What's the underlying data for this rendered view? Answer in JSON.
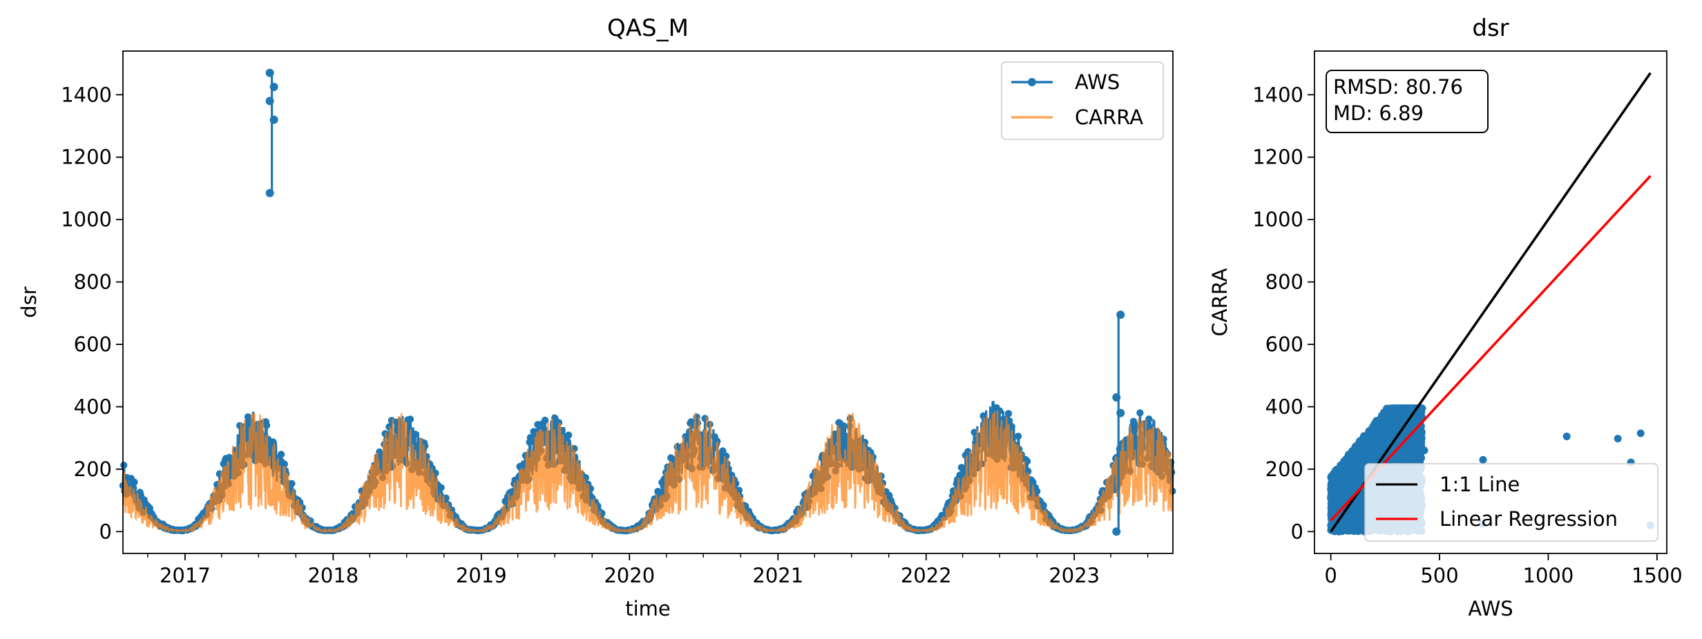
{
  "colors": {
    "aws": "#1f77b4",
    "carra": "#ff7f0e",
    "one_to_one": "#000000",
    "regression": "#ff0000"
  },
  "chart_data": [
    {
      "type": "line",
      "title": "QAS_M",
      "xlabel": "time",
      "ylabel": "dsr",
      "xlim": [
        "2016-08-01",
        "2023-09-01"
      ],
      "ylim": [
        -70,
        1540
      ],
      "xticks": [
        "2017",
        "2018",
        "2019",
        "2020",
        "2021",
        "2022",
        "2023"
      ],
      "yticks": [
        0,
        200,
        400,
        600,
        800,
        1000,
        1200,
        1400
      ],
      "legend": {
        "position": "top-right",
        "entries": [
          {
            "label": "AWS",
            "color": "#1f77b4",
            "marker": "dot"
          },
          {
            "label": "CARRA",
            "color": "#ff7f0e",
            "marker": "none"
          }
        ]
      },
      "series": [
        {
          "name": "AWS",
          "seasonal_peaks": [
            {
              "date": "2016-08-01",
              "value": 260
            },
            {
              "date": "2017-06-20",
              "value": 385
            },
            {
              "date": "2018-06-15",
              "value": 380
            },
            {
              "date": "2019-06-15",
              "value": 380
            },
            {
              "date": "2020-06-15",
              "value": 375
            },
            {
              "date": "2021-06-15",
              "value": 370
            },
            {
              "date": "2022-06-20",
              "value": 420
            },
            {
              "date": "2023-06-15",
              "value": 385
            }
          ],
          "winter_min": 5,
          "spikes": [
            {
              "date": "2017-08-03",
              "values": [
                1085,
                1320,
                1380,
                1425,
                1470
              ]
            },
            {
              "date": "2023-04-20",
              "values": [
                0,
                380,
                430,
                695
              ]
            }
          ]
        },
        {
          "name": "CARRA",
          "seasonal_peaks": [
            {
              "date": "2016-08-01",
              "value": 230
            },
            {
              "date": "2017-06-20",
              "value": 385
            },
            {
              "date": "2018-06-10",
              "value": 390
            },
            {
              "date": "2019-06-15",
              "value": 375
            },
            {
              "date": "2020-06-15",
              "value": 385
            },
            {
              "date": "2021-06-15",
              "value": 395
            },
            {
              "date": "2022-06-20",
              "value": 395
            },
            {
              "date": "2023-06-15",
              "value": 385
            }
          ],
          "winter_min": 5
        }
      ]
    },
    {
      "type": "scatter",
      "title": "dsr",
      "xlabel": "AWS",
      "ylabel": "CARRA",
      "xlim": [
        -75,
        1545
      ],
      "ylim": [
        -70,
        1540
      ],
      "xticks": [
        0,
        500,
        1000,
        1500
      ],
      "yticks": [
        0,
        200,
        400,
        600,
        800,
        1000,
        1200,
        1400
      ],
      "stats": {
        "rmsd": "RMSD: 80.76",
        "md": "MD: 6.89"
      },
      "legend": {
        "position": "lower-right",
        "entries": [
          {
            "label": "1:1 Line",
            "color": "#000000"
          },
          {
            "label": "Linear Regression",
            "color": "#ff0000"
          }
        ]
      },
      "one_to_one": {
        "x": [
          0,
          1470
        ],
        "y": [
          0,
          1470
        ]
      },
      "regression": {
        "x": [
          0,
          1470
        ],
        "y": [
          35,
          1140
        ]
      },
      "cluster": {
        "x_range": [
          0,
          420
        ],
        "y_range": [
          0,
          395
        ]
      },
      "outliers": [
        {
          "x": 430,
          "y": 260
        },
        {
          "x": 700,
          "y": 230
        },
        {
          "x": 1085,
          "y": 305
        },
        {
          "x": 1320,
          "y": 298
        },
        {
          "x": 1380,
          "y": 222
        },
        {
          "x": 1425,
          "y": 315
        },
        {
          "x": 1470,
          "y": 20
        },
        {
          "x": 695,
          "y": 25
        }
      ]
    }
  ]
}
